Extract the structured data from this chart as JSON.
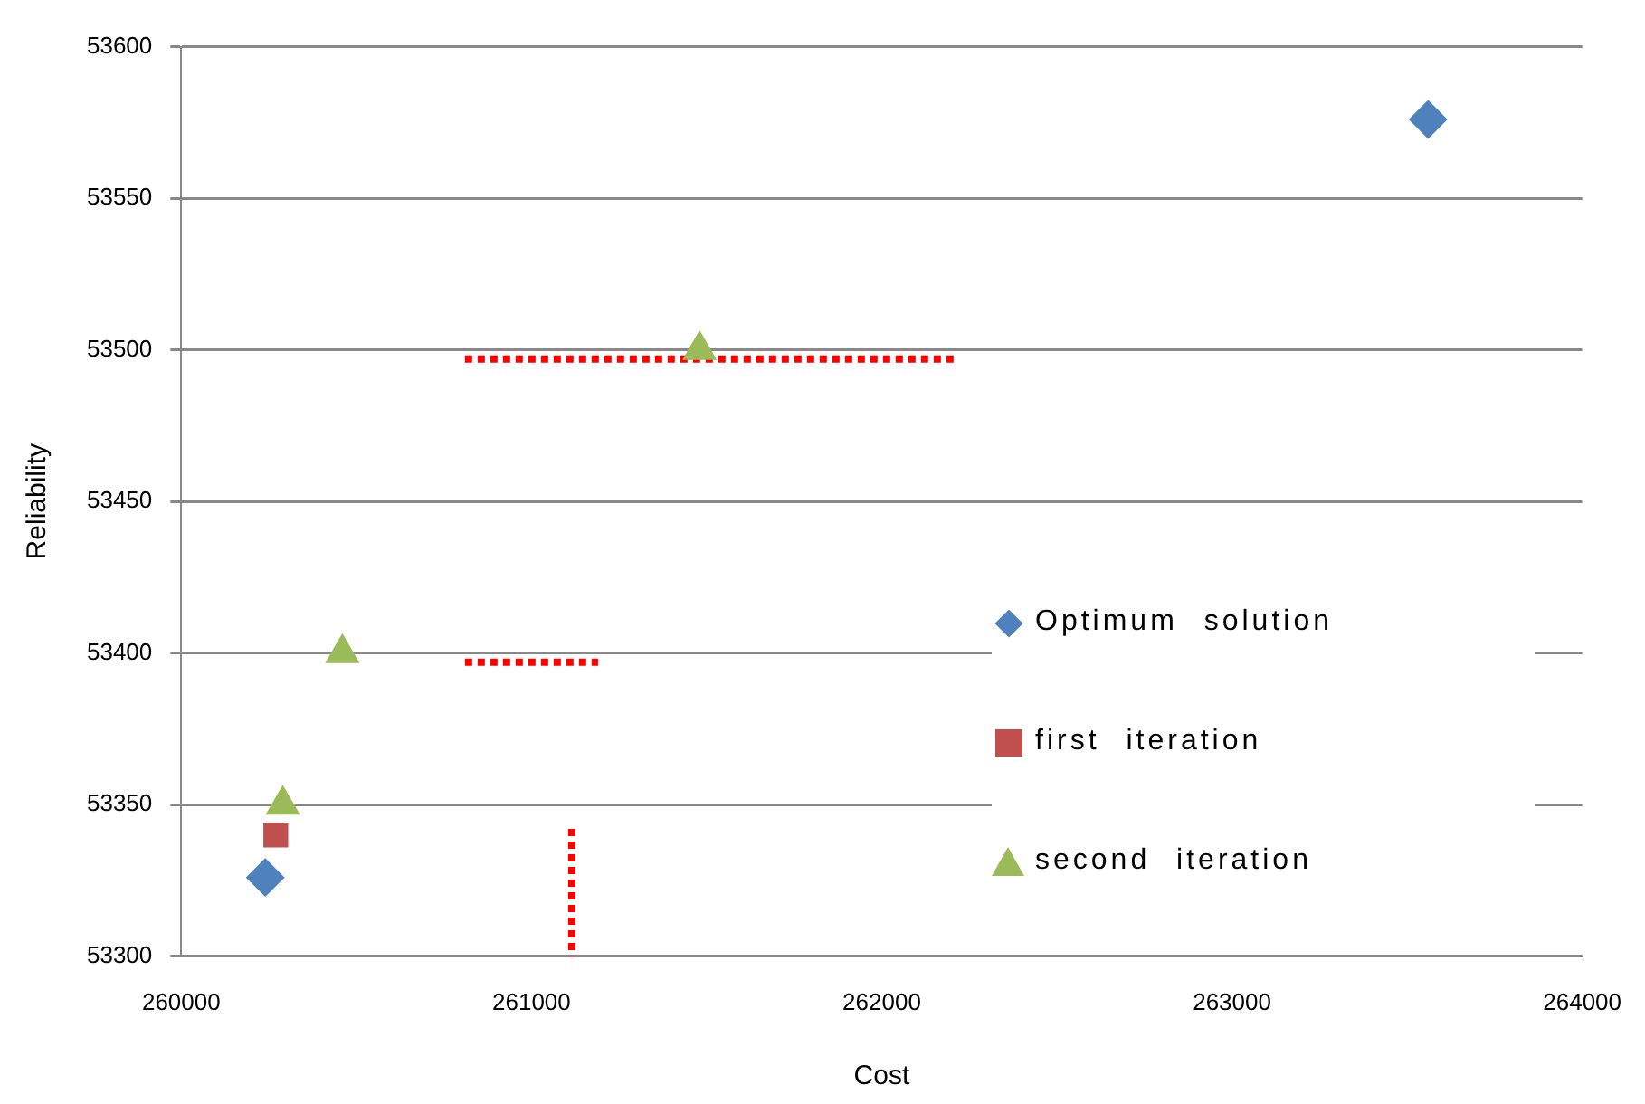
{
  "chart_data": {
    "type": "scatter",
    "xlabel": "Cost",
    "ylabel": "Reliability",
    "xlim": [
      260000,
      264000
    ],
    "xticks": [
      260000,
      261000,
      262000,
      263000,
      264000
    ],
    "ylim": [
      53300,
      53600
    ],
    "yticks": [
      53300,
      53350,
      53400,
      53450,
      53500,
      53550,
      53600
    ],
    "grid": "y",
    "legend": "right",
    "series": [
      {
        "name": "Optimum solution",
        "color": "#4f81bd",
        "marker": "diamond",
        "x": [
          260240,
          263560
        ],
        "values": [
          53326,
          53576
        ]
      },
      {
        "name": "first iteration",
        "color": "#c0504d",
        "marker": "square",
        "x": [
          260270
        ],
        "values": [
          53340
        ]
      },
      {
        "name": "second iteration",
        "color": "#9bbb59",
        "marker": "triangle",
        "x": [
          260290,
          260460,
          261480
        ],
        "values": [
          53350,
          53400,
          53500
        ]
      },
      {
        "type": "line",
        "color": "#ff0000",
        "line_style": "dotted",
        "marker": "none",
        "x": [
          260810,
          262210
        ],
        "values": [
          53497,
          53497
        ]
      },
      {
        "type": "line",
        "color": "#ff0000",
        "line_style": "dotted",
        "marker": "none",
        "x": [
          260810,
          261190
        ],
        "values": [
          53397,
          53397
        ]
      },
      {
        "type": "line",
        "color": "#ff0000",
        "line_style": "dotted",
        "marker": "none",
        "x": [
          261115,
          261115
        ],
        "values": [
          53342,
          53300
        ]
      }
    ]
  }
}
